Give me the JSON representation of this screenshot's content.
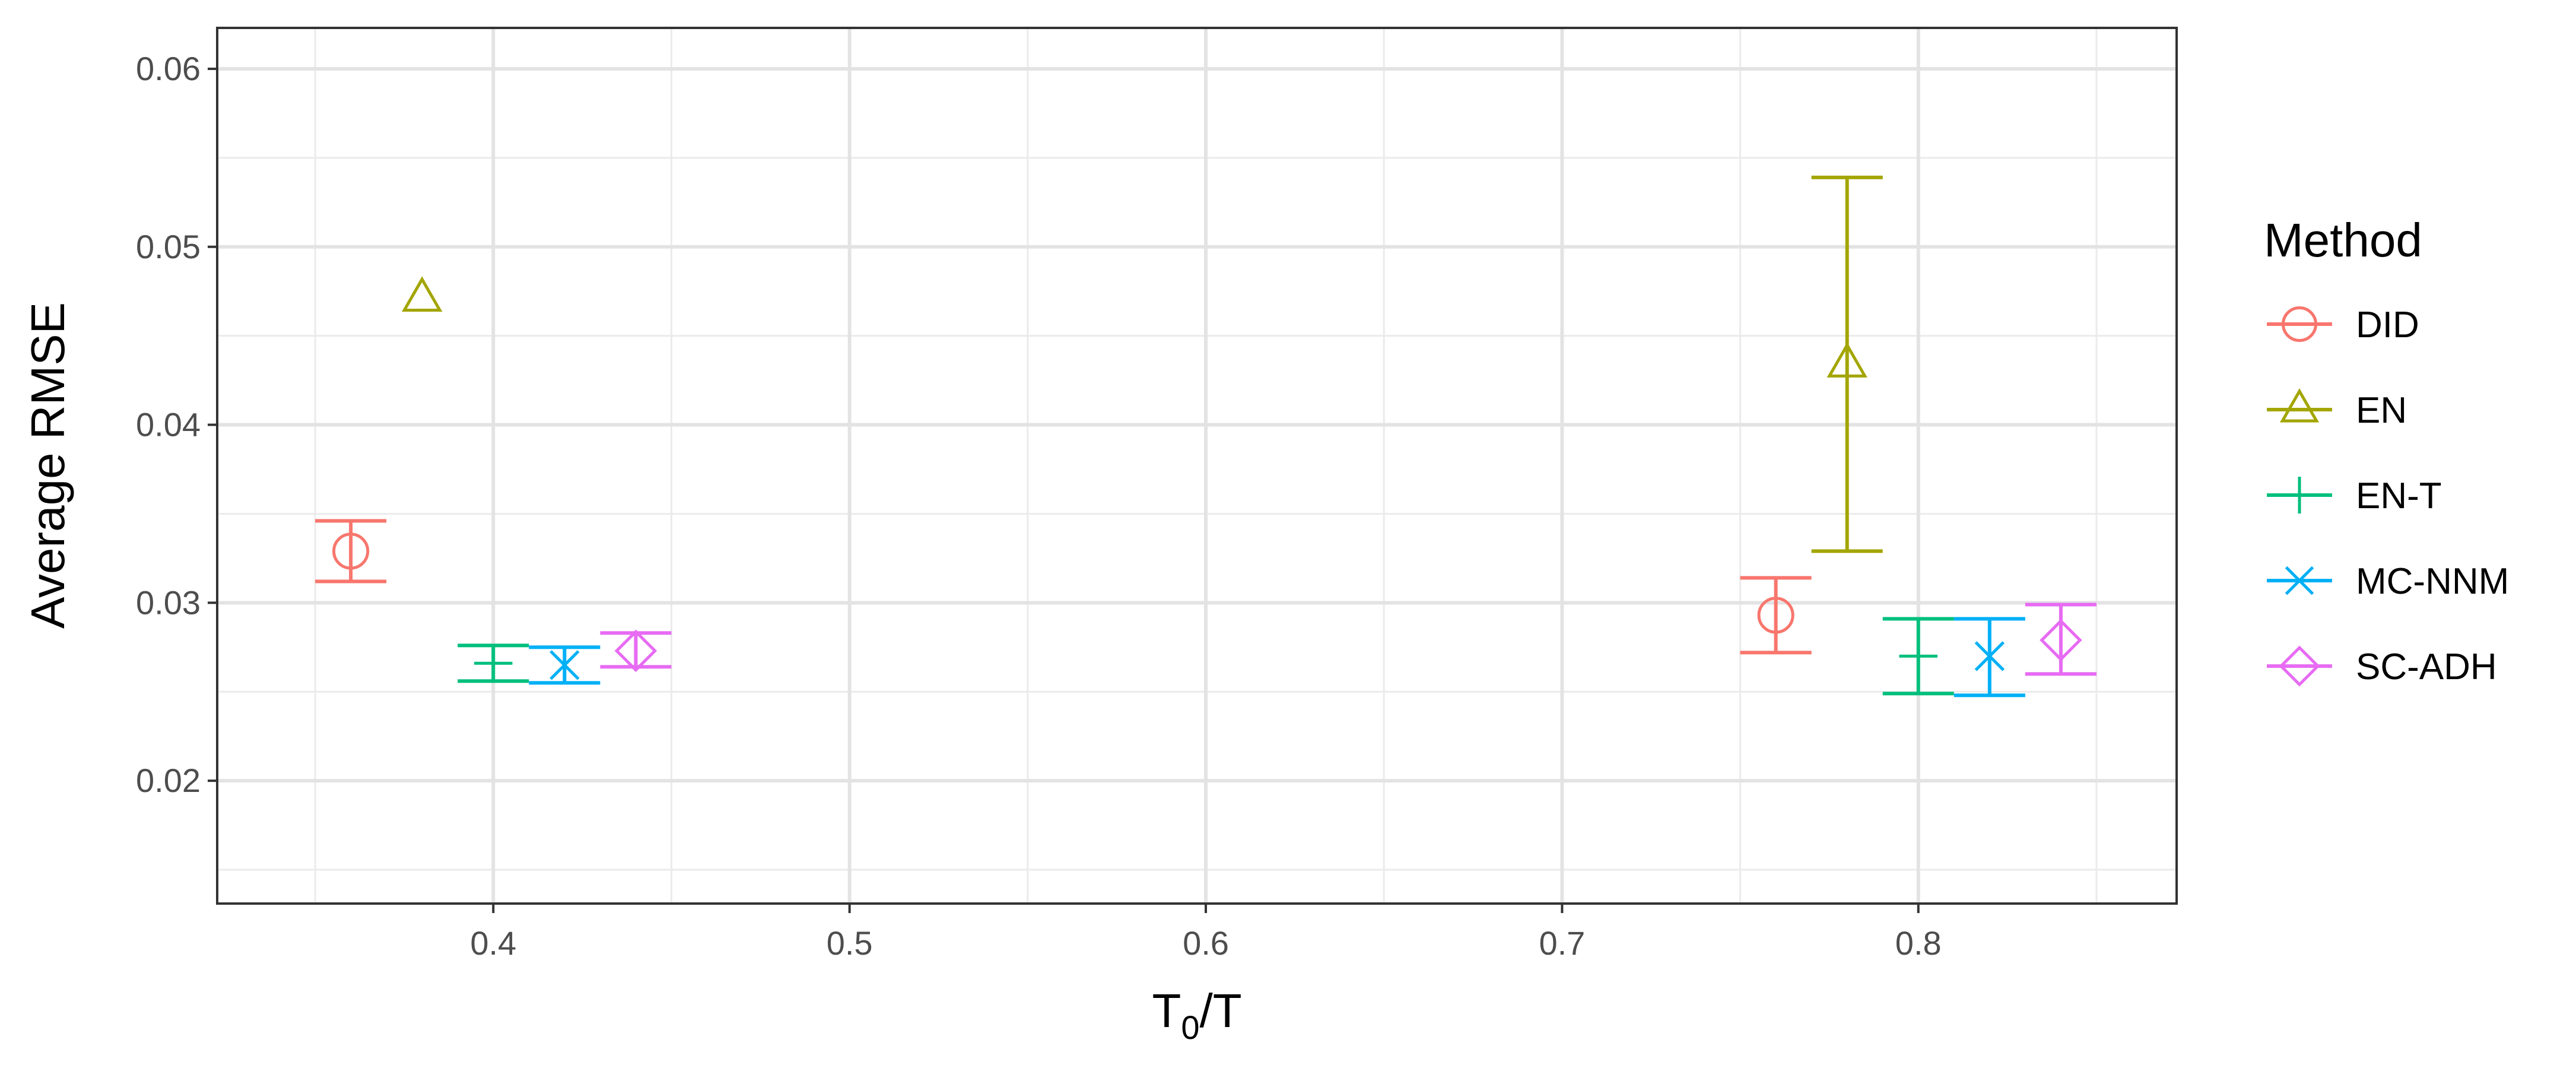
{
  "chart_data": {
    "type": "scatter",
    "title": "",
    "xlabel": {
      "main": "T",
      "sub": "0",
      "rest": "/T"
    },
    "ylabel": "Average RMSE",
    "xlim": [
      0.3225,
      0.8725
    ],
    "ylim": [
      0.0131,
      0.0623
    ],
    "xticks": [
      0.4,
      0.5,
      0.6,
      0.7,
      0.8
    ],
    "xtick_labels": [
      "0.4",
      "0.5",
      "0.6",
      "0.7",
      "0.8"
    ],
    "yticks": [
      0.02,
      0.03,
      0.04,
      0.05,
      0.06
    ],
    "ytick_labels": [
      "0.02",
      "0.03",
      "0.04",
      "0.05",
      "0.06"
    ],
    "grid": true,
    "legend": {
      "title": "Method",
      "position": "right"
    },
    "series": [
      {
        "name": "DID",
        "color": "#F8766D",
        "shape": "circle",
        "points": [
          {
            "x": 0.36,
            "y": 0.0329,
            "ymin": 0.0312,
            "ymax": 0.0346
          },
          {
            "x": 0.76,
            "y": 0.0293,
            "ymin": 0.0272,
            "ymax": 0.0314
          }
        ]
      },
      {
        "name": "EN",
        "color": "#A3A500",
        "shape": "triangle",
        "points": [
          {
            "x": 0.38,
            "y": 0.0471,
            "ymin": null,
            "ymax": null
          },
          {
            "x": 0.78,
            "y": 0.0434,
            "ymin": 0.0329,
            "ymax": 0.0539
          }
        ]
      },
      {
        "name": "EN-T",
        "color": "#00BF7D",
        "shape": "plus",
        "points": [
          {
            "x": 0.4,
            "y": 0.0266,
            "ymin": 0.0256,
            "ymax": 0.0276
          },
          {
            "x": 0.8,
            "y": 0.027,
            "ymin": 0.0249,
            "ymax": 0.0291
          }
        ]
      },
      {
        "name": "MC-NNM",
        "color": "#00B0F6",
        "shape": "cross",
        "points": [
          {
            "x": 0.42,
            "y": 0.0265,
            "ymin": 0.0255,
            "ymax": 0.0275
          },
          {
            "x": 0.82,
            "y": 0.027,
            "ymin": 0.0248,
            "ymax": 0.0291
          }
        ]
      },
      {
        "name": "SC-ADH",
        "color": "#E76BF3",
        "shape": "diamond",
        "points": [
          {
            "x": 0.44,
            "y": 0.0273,
            "ymin": 0.0264,
            "ymax": 0.0283
          },
          {
            "x": 0.84,
            "y": 0.0279,
            "ymin": 0.026,
            "ymax": 0.0299
          }
        ]
      }
    ]
  }
}
